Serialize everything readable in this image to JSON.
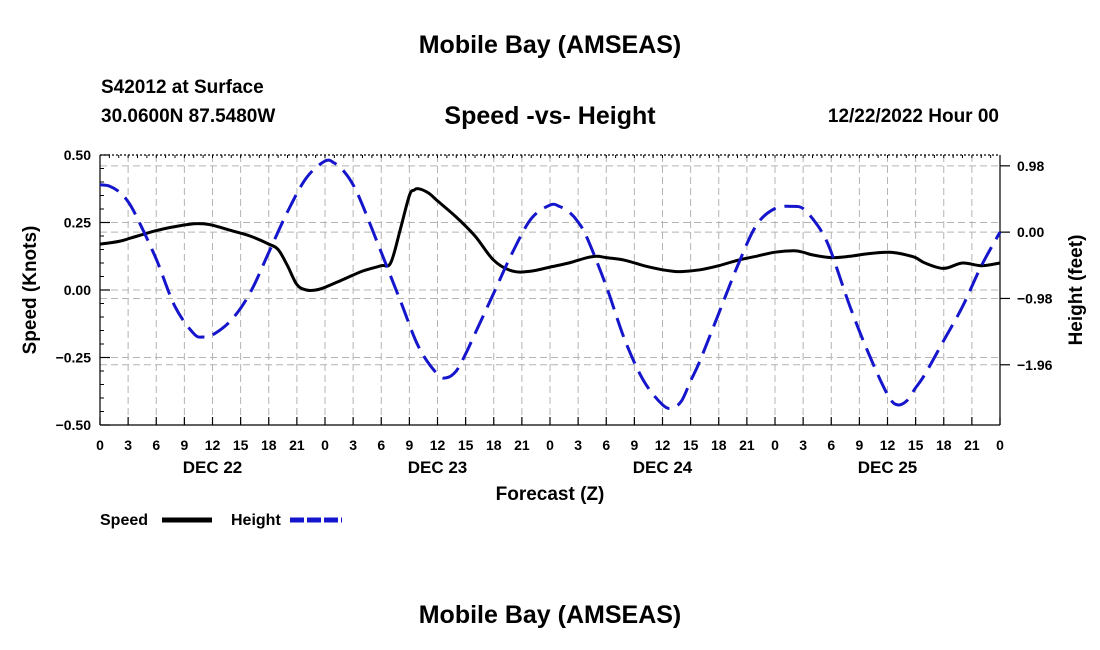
{
  "header": {
    "main_title": "Mobile Bay (AMSEAS)",
    "station": "S42012 at Surface",
    "coords": "30.0600N  87.5480W",
    "chart_title": "Speed -vs- Height",
    "datetime": "12/22/2022 Hour 00",
    "bottom_title": "Mobile Bay (AMSEAS)"
  },
  "chart_data": {
    "type": "line",
    "title": "Speed -vs- Height",
    "xlabel": "Forecast (Z)",
    "ylabel_left": "Speed (Knots)",
    "ylabel_right": "Height (feet)",
    "x_range_hours": [
      0,
      96
    ],
    "x_tick_step_hours": 3,
    "x_tick_labels": [
      "0",
      "3",
      "6",
      "9",
      "12",
      "15",
      "18",
      "21",
      "0",
      "3",
      "6",
      "9",
      "12",
      "15",
      "18",
      "21",
      "0",
      "3",
      "6",
      "9",
      "12",
      "15",
      "18",
      "21",
      "0",
      "3",
      "6",
      "9",
      "12",
      "15",
      "18",
      "21",
      "0"
    ],
    "day_labels": [
      {
        "hour": 12,
        "label": "DEC 22"
      },
      {
        "hour": 36,
        "label": "DEC 23"
      },
      {
        "hour": 60,
        "label": "DEC 24"
      },
      {
        "hour": 84,
        "label": "DEC 25"
      }
    ],
    "y_left": {
      "min": -0.5,
      "max": 0.5,
      "ticks": [
        0.5,
        0.25,
        0.0,
        -0.25,
        -0.5
      ],
      "tick_labels": [
        "0.50",
        "0.25",
        "0.00",
        "−0.25",
        "−0.50"
      ]
    },
    "y_right": {
      "min": -2.85,
      "max": 1.14,
      "ticks": [
        0.98,
        0.0,
        -0.98,
        -1.96
      ],
      "tick_labels": [
        "0.98",
        "0.00",
        "−0.98",
        "−1.96"
      ]
    },
    "legend": [
      {
        "name": "Speed",
        "color": "#000000"
      },
      {
        "name": "Height",
        "color": "#1515cc"
      }
    ],
    "series": [
      {
        "name": "Speed",
        "axis": "left",
        "color": "#000000",
        "x": [
          0,
          2,
          4,
          6,
          8,
          10,
          11,
          12,
          14,
          16,
          18,
          19,
          20,
          21,
          22,
          23,
          24,
          26,
          28,
          30,
          31,
          32,
          33,
          33.5,
          34,
          35,
          36,
          38,
          40,
          42,
          44,
          46,
          48,
          50,
          52,
          53,
          54,
          56,
          58,
          60,
          61,
          62,
          64,
          66,
          68,
          70,
          72,
          74,
          75,
          76,
          78,
          80,
          82,
          84,
          85,
          86,
          87,
          88,
          90,
          92,
          94,
          96
        ],
        "values": [
          0.17,
          0.18,
          0.2,
          0.22,
          0.235,
          0.245,
          0.245,
          0.24,
          0.22,
          0.2,
          0.17,
          0.15,
          0.09,
          0.02,
          0.0,
          0.0,
          0.01,
          0.04,
          0.07,
          0.09,
          0.1,
          0.22,
          0.35,
          0.37,
          0.375,
          0.36,
          0.33,
          0.27,
          0.2,
          0.11,
          0.07,
          0.07,
          0.085,
          0.1,
          0.12,
          0.125,
          0.12,
          0.11,
          0.09,
          0.075,
          0.07,
          0.068,
          0.075,
          0.09,
          0.11,
          0.125,
          0.14,
          0.145,
          0.14,
          0.13,
          0.12,
          0.125,
          0.135,
          0.14,
          0.137,
          0.13,
          0.12,
          0.1,
          0.08,
          0.1,
          0.09,
          0.1
        ]
      },
      {
        "name": "Height",
        "axis": "right",
        "color": "#1515cc",
        "x": [
          0,
          1,
          2,
          3,
          4,
          6,
          8,
          10,
          11,
          12,
          14,
          16,
          18,
          20,
          22,
          24,
          25,
          26,
          27,
          28,
          30,
          32,
          34,
          36,
          37,
          38,
          39,
          40,
          42,
          44,
          46,
          48,
          49,
          50,
          51,
          52,
          54,
          56,
          58,
          60,
          61,
          62,
          63,
          64,
          66,
          68,
          70,
          72,
          74,
          75,
          76,
          77,
          78,
          80,
          82,
          84,
          85,
          86,
          87,
          88,
          90,
          92,
          94,
          96
        ],
        "values": [
          0.7,
          0.68,
          0.6,
          0.45,
          0.2,
          -0.4,
          -1.1,
          -1.5,
          -1.55,
          -1.52,
          -1.3,
          -0.9,
          -0.3,
          0.3,
          0.8,
          1.05,
          1.02,
          0.9,
          0.7,
          0.4,
          -0.3,
          -1.0,
          -1.7,
          -2.1,
          -2.15,
          -2.05,
          -1.8,
          -1.5,
          -0.9,
          -0.3,
          0.2,
          0.4,
          0.38,
          0.3,
          0.15,
          -0.1,
          -0.8,
          -1.6,
          -2.2,
          -2.55,
          -2.6,
          -2.5,
          -2.2,
          -1.9,
          -1.2,
          -0.5,
          0.1,
          0.35,
          0.38,
          0.35,
          0.2,
          0.0,
          -0.3,
          -1.1,
          -1.8,
          -2.4,
          -2.55,
          -2.5,
          -2.3,
          -2.1,
          -1.6,
          -1.1,
          -0.5,
          0.0
        ]
      }
    ]
  }
}
